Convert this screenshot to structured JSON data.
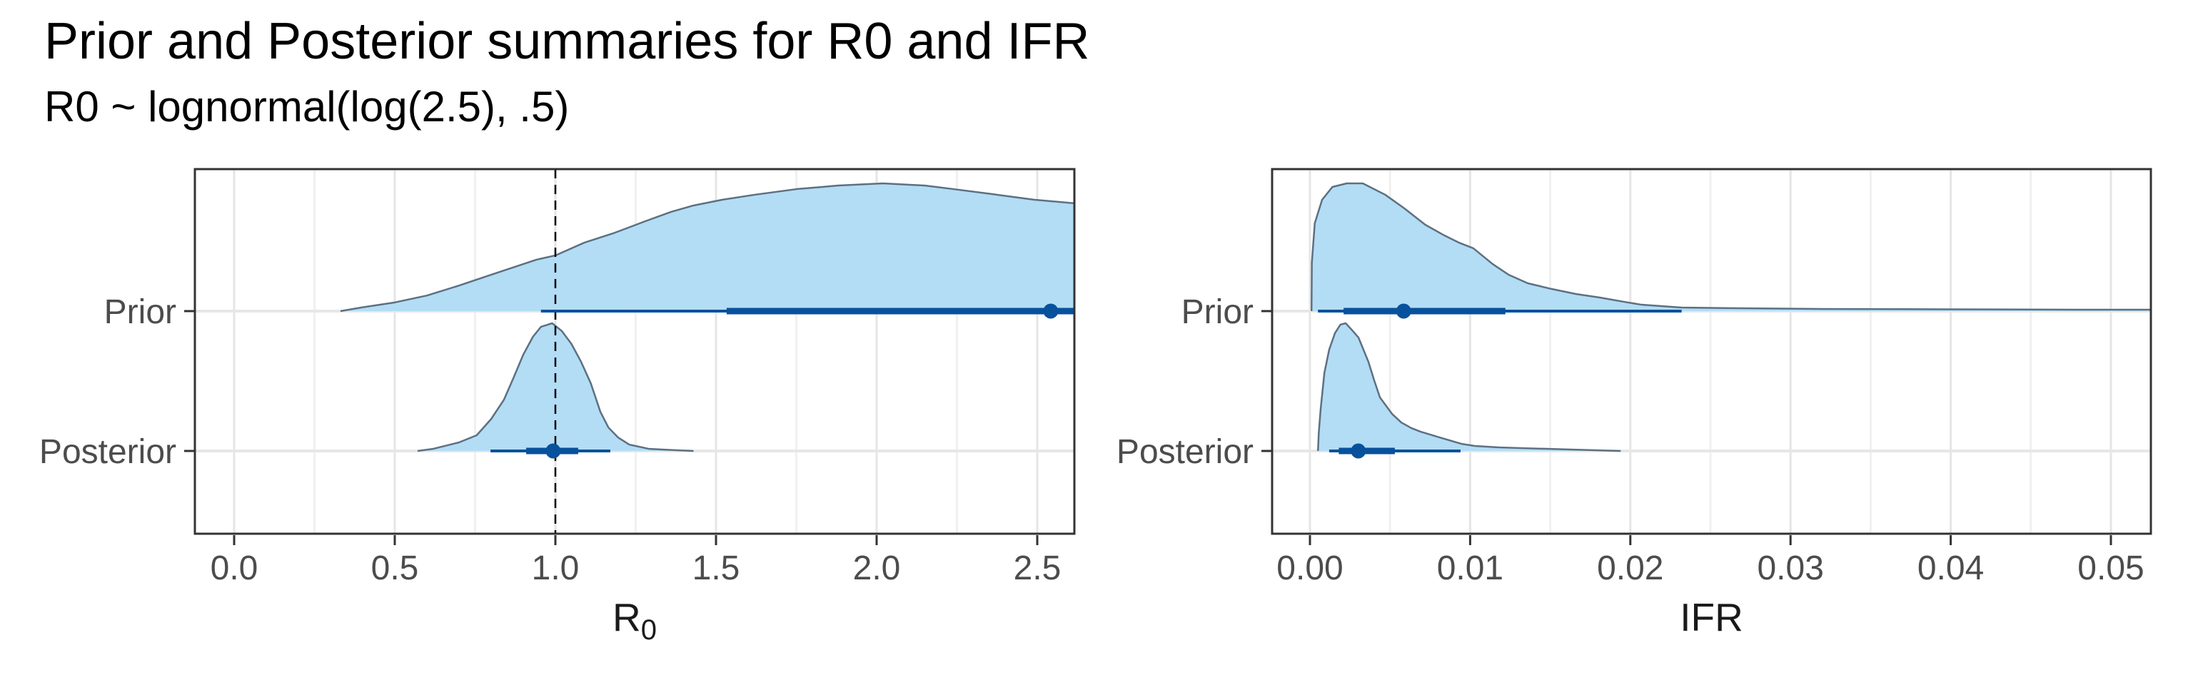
{
  "header": {
    "title": "Prior and Posterior summaries for R0 and IFR",
    "subtitle": "R0 ~ lognormal(log(2.5), .5)"
  },
  "chart_data": {
    "type": "area",
    "subtype": "halfeye-density-ridges",
    "description": "Density slabs with median point, 66% (thick) and 95% (thin) intervals for Prior and Posterior of R0 and IFR",
    "legend_position": "none",
    "grid": "on",
    "colors": {
      "slab_fill": "#b3ddf5",
      "slab_outline": "#5d7081",
      "interval": "#08519c",
      "point": "#08519c",
      "grid_major": "#e5e5e5",
      "grid_minor": "#f0f0f0",
      "row_gridline": "#e7e7e7",
      "panel_border": "#333333",
      "axis_text": "#4c4c4c",
      "axis_title": "#1a1a1a",
      "reference_line": "#000000"
    },
    "panels": [
      {
        "id": "R0",
        "xlabel": "R0",
        "xlabel_main": "R",
        "xlabel_sub": "0",
        "xlim": [
          -0.122,
          2.616
        ],
        "x_ticks": [
          0,
          0.5,
          1.0,
          1.5,
          2.0,
          2.5
        ],
        "x_tick_labels": [
          "0.0",
          "0.5",
          "1.0",
          "1.5",
          "2.0",
          "2.5"
        ],
        "x_minor_ticks": [
          0.25,
          0.75,
          1.25,
          1.75,
          2.25
        ],
        "refline_x": 1.0,
        "rows": [
          {
            "label": "Prior",
            "point": 2.542,
            "interval66": [
              1.533,
              2.616
            ],
            "interval95": [
              0.955,
              2.616
            ],
            "truncated_right": true,
            "density": [
              [
                0.331,
                0
              ],
              [
                0.4,
                0.03
              ],
              [
                0.5,
                0.068
              ],
              [
                0.6,
                0.122
              ],
              [
                0.7,
                0.2
              ],
              [
                0.78,
                0.268
              ],
              [
                0.86,
                0.335
              ],
              [
                0.94,
                0.402
              ],
              [
                1.0,
                0.436
              ],
              [
                1.09,
                0.536
              ],
              [
                1.18,
                0.609
              ],
              [
                1.28,
                0.704
              ],
              [
                1.36,
                0.777
              ],
              [
                1.43,
                0.827
              ],
              [
                1.52,
                0.872
              ],
              [
                1.62,
                0.911
              ],
              [
                1.75,
                0.955
              ],
              [
                1.88,
                0.983
              ],
              [
                2.02,
                1.0
              ],
              [
                2.15,
                0.983
              ],
              [
                2.24,
                0.955
              ],
              [
                2.36,
                0.916
              ],
              [
                2.49,
                0.872
              ],
              [
                2.616,
                0.844
              ]
            ]
          },
          {
            "label": "Posterior",
            "point": 0.993,
            "interval66": [
              0.909,
              1.071
            ],
            "interval95": [
              0.798,
              1.171
            ],
            "truncated_right": false,
            "density": [
              [
                0.571,
                0
              ],
              [
                0.62,
                0.017
              ],
              [
                0.7,
                0.067
              ],
              [
                0.755,
                0.123
              ],
              [
                0.8,
                0.25
              ],
              [
                0.84,
                0.402
              ],
              [
                0.87,
                0.575
              ],
              [
                0.9,
                0.754
              ],
              [
                0.93,
                0.894
              ],
              [
                0.955,
                0.972
              ],
              [
                0.99,
                1.0
              ],
              [
                1.02,
                0.939
              ],
              [
                1.05,
                0.838
              ],
              [
                1.08,
                0.698
              ],
              [
                1.11,
                0.531
              ],
              [
                1.14,
                0.307
              ],
              [
                1.165,
                0.184
              ],
              [
                1.195,
                0.106
              ],
              [
                1.23,
                0.05
              ],
              [
                1.29,
                0.017
              ],
              [
                1.36,
                0.008
              ],
              [
                1.43,
                0
              ]
            ]
          }
        ]
      },
      {
        "id": "IFR",
        "xlabel": "IFR",
        "xlabel_main": "IFR",
        "xlabel_sub": "",
        "xlim": [
          -0.00236,
          0.0525
        ],
        "x_ticks": [
          0,
          0.01,
          0.02,
          0.03,
          0.04,
          0.05
        ],
        "x_tick_labels": [
          "0.00",
          "0.01",
          "0.02",
          "0.03",
          "0.04",
          "0.05"
        ],
        "x_minor_ticks": [
          0.005,
          0.015,
          0.025,
          0.035,
          0.045
        ],
        "refline_x": null,
        "rows": [
          {
            "label": "Prior",
            "point": 0.00585,
            "interval66": [
              0.0021,
              0.0122
            ],
            "interval95": [
              0.0005,
              0.0232
            ],
            "truncated_right": true,
            "density": [
              [
                0.0001,
                0
              ],
              [
                0.00012,
                0.38
              ],
              [
                0.0003,
                0.687
              ],
              [
                0.00076,
                0.872
              ],
              [
                0.0014,
                0.972
              ],
              [
                0.0023,
                1.0
              ],
              [
                0.0033,
                1.0
              ],
              [
                0.0047,
                0.911
              ],
              [
                0.0059,
                0.804
              ],
              [
                0.0072,
                0.676
              ],
              [
                0.0084,
                0.592
              ],
              [
                0.0093,
                0.536
              ],
              [
                0.0102,
                0.492
              ],
              [
                0.0114,
                0.369
              ],
              [
                0.0124,
                0.285
              ],
              [
                0.0136,
                0.218
              ],
              [
                0.0151,
                0.173
              ],
              [
                0.0166,
                0.134
              ],
              [
                0.0181,
                0.106
              ],
              [
                0.0196,
                0.073
              ],
              [
                0.0207,
                0.05
              ],
              [
                0.0232,
                0.028
              ],
              [
                0.027,
                0.022
              ],
              [
                0.032,
                0.017
              ],
              [
                0.04,
                0.014
              ],
              [
                0.048,
                0.011
              ],
              [
                0.0525,
                0.011
              ]
            ]
          },
          {
            "label": "Posterior",
            "point": 0.00302,
            "interval66": [
              0.0018,
              0.0053
            ],
            "interval95": [
              0.0012,
              0.0094
            ],
            "truncated_right": false,
            "density": [
              [
                0.0005,
                0
              ],
              [
                0.00055,
                0.14
              ],
              [
                0.00067,
                0.33
              ],
              [
                0.0009,
                0.61
              ],
              [
                0.0012,
                0.793
              ],
              [
                0.00156,
                0.922
              ],
              [
                0.0019,
                0.989
              ],
              [
                0.00223,
                1.0
              ],
              [
                0.0026,
                0.95
              ],
              [
                0.00303,
                0.888
              ],
              [
                0.00365,
                0.698
              ],
              [
                0.00401,
                0.553
              ],
              [
                0.00437,
                0.419
              ],
              [
                0.00512,
                0.291
              ],
              [
                0.0057,
                0.223
              ],
              [
                0.00633,
                0.179
              ],
              [
                0.0069,
                0.151
              ],
              [
                0.0081,
                0.106
              ],
              [
                0.00945,
                0.056
              ],
              [
                0.0103,
                0.039
              ],
              [
                0.0118,
                0.028
              ],
              [
                0.0133,
                0.022
              ],
              [
                0.0163,
                0.011
              ],
              [
                0.0194,
                0
              ]
            ]
          }
        ]
      }
    ]
  }
}
